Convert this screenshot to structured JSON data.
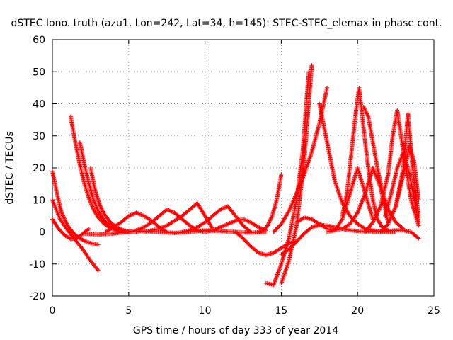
{
  "chart_data": {
    "type": "scatter",
    "title": "dSTEC Iono. truth (azu1, Lon=242, Lat=34, h=145): STEC-STEC_elemax in phase cont.",
    "xlabel": "GPS time / hours of day 333 of year 2014",
    "ylabel": "dSTEC  / TECUs",
    "xlim": [
      0,
      25
    ],
    "ylim": [
      -20,
      60
    ],
    "xticks": [
      0,
      5,
      10,
      15,
      20,
      25
    ],
    "yticks": [
      -20,
      -10,
      0,
      10,
      20,
      30,
      40,
      50,
      60
    ],
    "grid": true,
    "marker": "+",
    "marker_color": "#ff0000",
    "series": [
      {
        "x": [
          0.0,
          0.3,
          0.6,
          1.0,
          1.4,
          1.8,
          2.2,
          2.6,
          3.0
        ],
        "y": [
          19.0,
          12.0,
          6.0,
          2.0,
          -0.5,
          -2.0,
          -3.0,
          -3.6,
          -4.0
        ]
      },
      {
        "x": [
          0.0,
          0.5,
          1.0,
          1.5,
          2.0,
          2.5,
          3.0
        ],
        "y": [
          10.0,
          4.0,
          0.5,
          -2.5,
          -5.5,
          -9.0,
          -12.0
        ]
      },
      {
        "x": [
          0.0,
          0.4,
          0.8,
          1.2,
          1.6,
          2.0,
          2.4
        ],
        "y": [
          4.0,
          1.0,
          -1.0,
          -2.2,
          -2.0,
          -0.5,
          1.0
        ]
      },
      {
        "x": [
          1.2,
          1.5,
          1.8,
          2.1,
          2.4,
          2.7,
          3.0,
          3.4,
          3.8,
          4.2,
          4.6,
          5.0
        ],
        "y": [
          36.0,
          28.0,
          21.0,
          15.0,
          10.5,
          7.0,
          4.5,
          2.5,
          1.2,
          0.5,
          0.2,
          0.0
        ]
      },
      {
        "x": [
          1.8,
          2.1,
          2.4,
          2.7,
          3.0,
          3.4,
          3.8,
          4.2,
          4.6,
          5.0
        ],
        "y": [
          28.0,
          21.0,
          15.0,
          10.0,
          6.5,
          3.5,
          1.8,
          0.8,
          0.3,
          0.0
        ]
      },
      {
        "x": [
          2.5,
          2.8,
          3.1,
          3.4,
          3.8,
          4.2,
          4.6,
          5.0,
          5.5
        ],
        "y": [
          20.0,
          13.0,
          8.5,
          5.5,
          3.0,
          1.5,
          0.6,
          0.2,
          0.0
        ]
      },
      {
        "x": [
          3.5,
          4.0,
          4.5,
          5.0,
          5.5,
          6.0,
          6.5,
          7.0,
          7.5
        ],
        "y": [
          0.0,
          1.5,
          3.0,
          5.0,
          6.0,
          5.0,
          3.5,
          1.5,
          0.0
        ]
      },
      {
        "x": [
          5.0,
          5.5,
          6.0,
          6.5,
          7.0,
          7.5,
          8.0,
          8.5,
          9.0,
          9.5,
          10.0
        ],
        "y": [
          0.0,
          0.5,
          1.5,
          3.0,
          5.0,
          7.0,
          6.0,
          4.0,
          2.0,
          0.5,
          0.0
        ]
      },
      {
        "x": [
          6.0,
          6.5,
          7.0,
          7.5,
          8.0,
          8.5,
          9.0,
          9.5,
          10.0,
          10.5
        ],
        "y": [
          0.0,
          0.5,
          1.0,
          2.0,
          3.5,
          5.0,
          7.0,
          9.0,
          5.0,
          1.0
        ]
      },
      {
        "x": [
          8.5,
          9.0,
          9.5,
          10.0,
          10.5,
          11.0,
          11.5,
          12.0,
          12.5,
          13.0
        ],
        "y": [
          0.0,
          0.5,
          1.5,
          3.0,
          5.0,
          7.0,
          8.0,
          5.0,
          2.0,
          0.0
        ]
      },
      {
        "x": [
          10.0,
          10.5,
          11.0,
          11.5,
          12.0,
          12.5,
          13.0,
          13.5,
          14.0
        ],
        "y": [
          0.0,
          0.5,
          1.5,
          2.5,
          3.5,
          4.0,
          3.0,
          1.5,
          0.5
        ]
      },
      {
        "x": [
          2.0,
          3.0,
          4.0,
          5.0,
          6.0,
          7.0,
          8.0,
          9.0,
          10.0,
          11.0,
          12.0,
          13.0,
          14.0
        ],
        "y": [
          -0.5,
          -0.8,
          -0.5,
          0.0,
          0.3,
          0.0,
          -0.3,
          0.0,
          0.5,
          0.3,
          0.0,
          -0.2,
          0.0
        ]
      },
      {
        "x": [
          12.0,
          12.5,
          13.0,
          13.5,
          14.0,
          14.5,
          15.0,
          15.5,
          16.0
        ],
        "y": [
          0.0,
          -2.0,
          -4.5,
          -6.5,
          -7.2,
          -6.5,
          -5.0,
          -3.5,
          -3.0
        ]
      },
      {
        "x": [
          13.5,
          13.8,
          14.1,
          14.4,
          14.7,
          15.0
        ],
        "y": [
          0.0,
          0.5,
          2.0,
          5.0,
          10.0,
          18.0
        ]
      },
      {
        "x": [
          14.0,
          14.5,
          15.0,
          15.5,
          16.0,
          16.4,
          16.8
        ],
        "y": [
          -16.0,
          -16.5,
          -10.0,
          -2.0,
          10.0,
          25.0,
          50.0
        ]
      },
      {
        "x": [
          15.0,
          15.5,
          16.0,
          16.5,
          17.0
        ],
        "y": [
          -16.0,
          -9.0,
          2.0,
          22.0,
          52.0
        ]
      },
      {
        "x": [
          14.5,
          15.0,
          15.5,
          16.0,
          16.5,
          17.0,
          17.5,
          18.0
        ],
        "y": [
          0.0,
          2.5,
          6.5,
          12.0,
          18.0,
          25.0,
          34.0,
          45.0
        ]
      },
      {
        "x": [
          15.0,
          15.5,
          16.0,
          16.5,
          17.0,
          17.5,
          18.0,
          18.5,
          19.0,
          19.5,
          20.0,
          20.5,
          21.0
        ],
        "y": [
          -7.0,
          -5.5,
          -3.0,
          -0.5,
          1.5,
          2.2,
          2.0,
          1.5,
          1.0,
          0.5,
          0.3,
          0.2,
          0.2
        ]
      },
      {
        "x": [
          16.0,
          16.5,
          17.0,
          17.5,
          18.0,
          18.5,
          19.0,
          19.5,
          20.0,
          20.5,
          21.0
        ],
        "y": [
          3.0,
          4.5,
          4.0,
          2.5,
          1.0,
          0.5,
          4.0,
          12.0,
          20.0,
          12.0,
          4.0
        ]
      },
      {
        "x": [
          17.5,
          18.0,
          18.5,
          19.0,
          19.5,
          20.0,
          20.5,
          21.0,
          21.5,
          22.0,
          22.5
        ],
        "y": [
          40.0,
          28.0,
          16.0,
          9.0,
          5.0,
          2.5,
          1.0,
          0.5,
          0.2,
          0.0,
          0.0
        ]
      },
      {
        "x": [
          18.0,
          18.5,
          19.0,
          19.5,
          20.0,
          20.5,
          21.0,
          21.5,
          22.0
        ],
        "y": [
          0.0,
          0.5,
          1.0,
          2.5,
          6.0,
          12.0,
          20.0,
          14.0,
          3.0
        ]
      },
      {
        "x": [
          19.0,
          19.3,
          19.6,
          19.9,
          20.1,
          20.4,
          20.7,
          21.0,
          21.3,
          21.6,
          22.0
        ],
        "y": [
          5.0,
          12.0,
          25.0,
          38.0,
          45.0,
          32.0,
          20.0,
          10.0,
          4.0,
          1.5,
          0.5
        ]
      },
      {
        "x": [
          20.4,
          20.7,
          21.0,
          21.3,
          21.6,
          22.0,
          22.5,
          23.0
        ],
        "y": [
          39.0,
          36.0,
          28.0,
          20.0,
          13.0,
          7.0,
          3.0,
          1.0
        ]
      },
      {
        "x": [
          20.5,
          21.0,
          21.5,
          22.0,
          22.3,
          22.6,
          23.0,
          23.5,
          24.0
        ],
        "y": [
          0.0,
          3.0,
          8.0,
          18.0,
          30.0,
          38.0,
          25.0,
          10.0,
          2.0
        ]
      },
      {
        "x": [
          21.5,
          22.0,
          22.5,
          23.0,
          23.3,
          23.6,
          24.0
        ],
        "y": [
          0.0,
          2.5,
          8.0,
          20.0,
          37.0,
          20.0,
          5.0
        ]
      },
      {
        "x": [
          21.8,
          22.2,
          22.6,
          23.0,
          23.4,
          23.8,
          24.0
        ],
        "y": [
          5.0,
          12.0,
          20.0,
          25.0,
          18.0,
          8.0,
          3.0
        ]
      },
      {
        "x": [
          22.5,
          22.8,
          23.1,
          23.4,
          23.7,
          24.0
        ],
        "y": [
          8.0,
          14.0,
          20.0,
          27.0,
          22.0,
          10.0
        ]
      },
      {
        "x": [
          21.0,
          21.5,
          22.0,
          22.5,
          23.0,
          23.5,
          24.0
        ],
        "y": [
          0.0,
          0.2,
          0.3,
          0.5,
          0.5,
          0.0,
          -2.0
        ]
      }
    ]
  }
}
